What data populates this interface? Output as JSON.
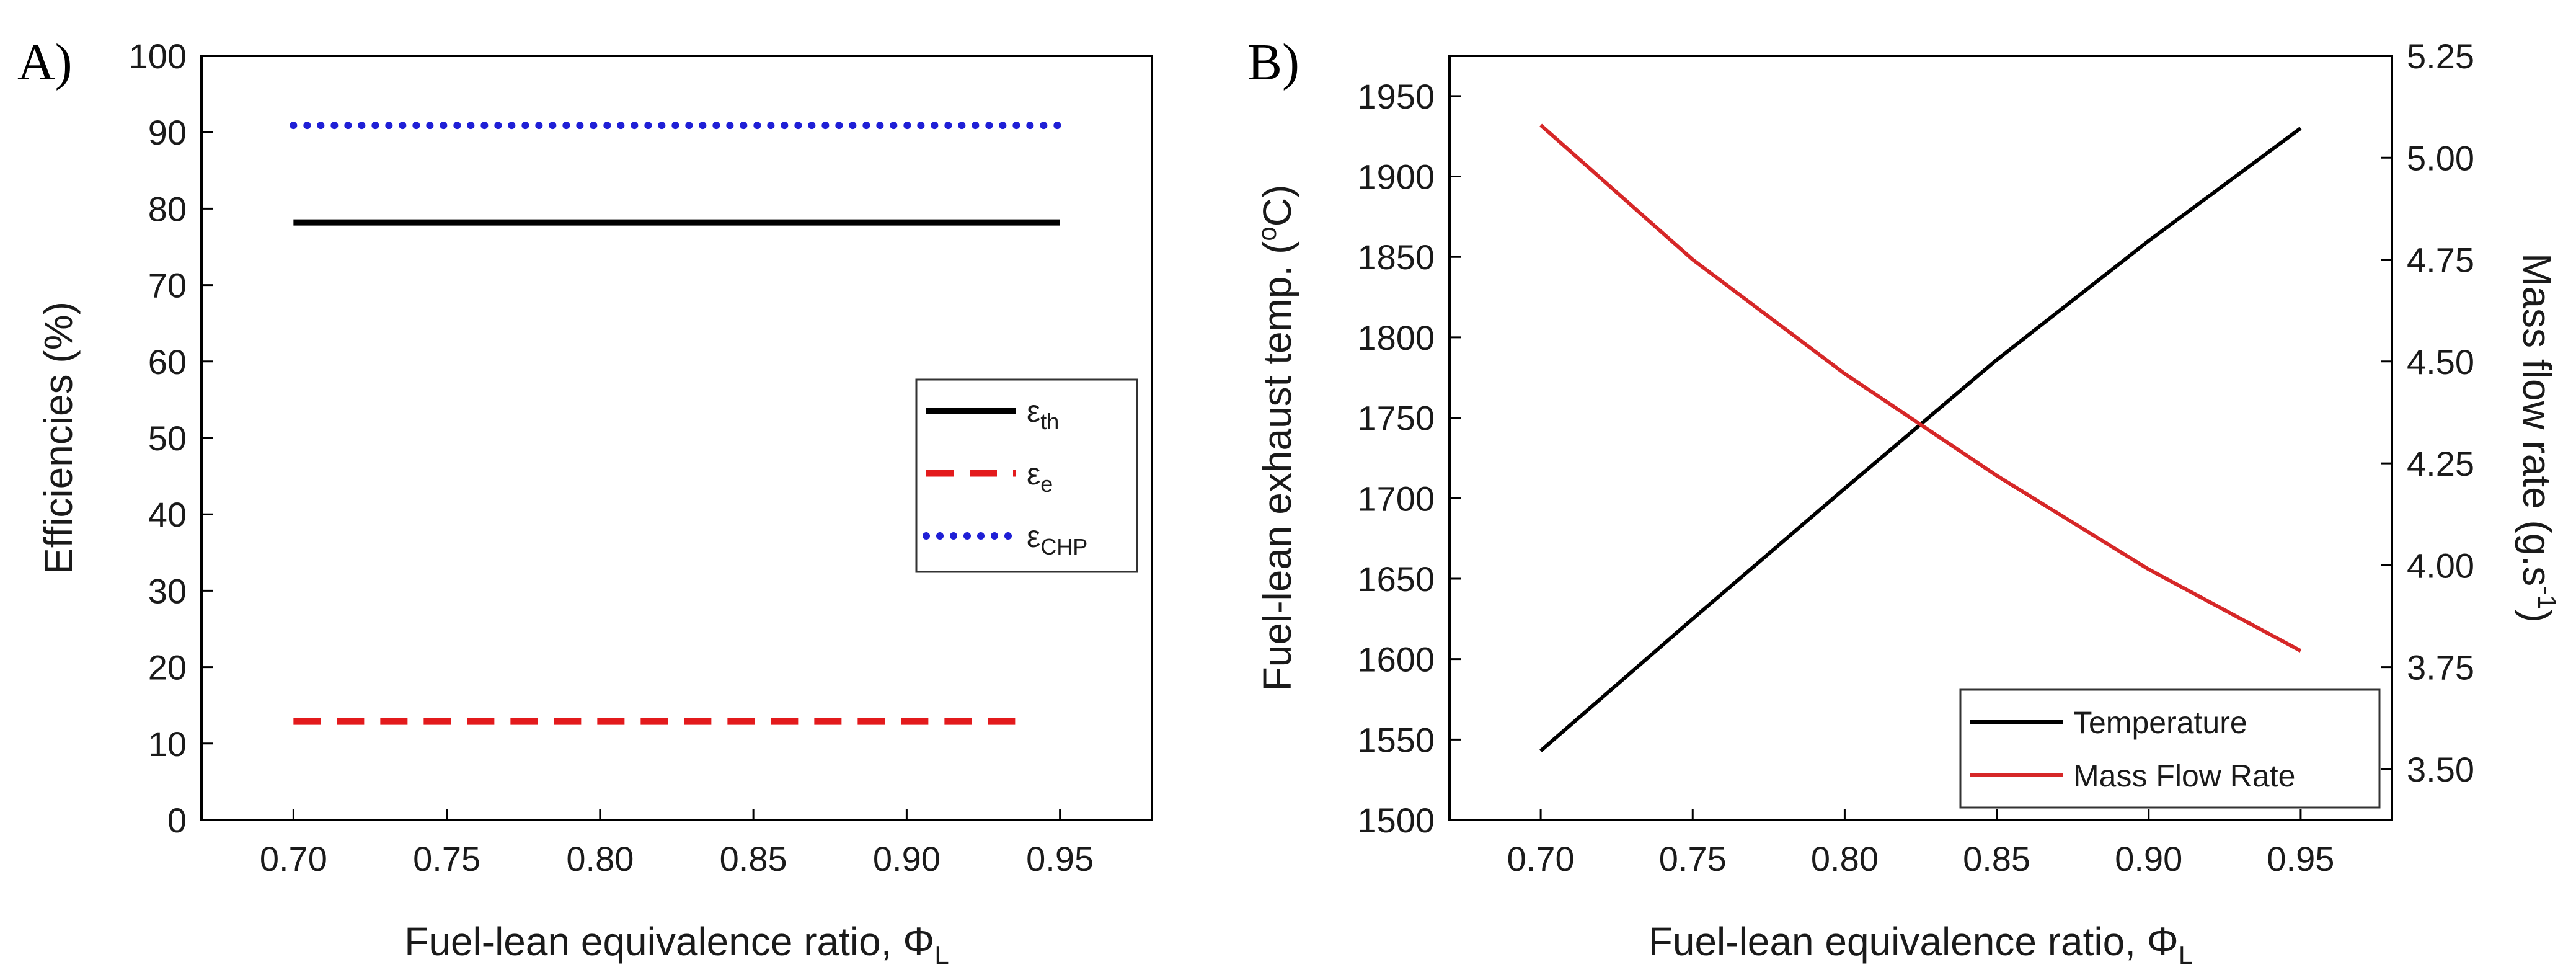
{
  "chart_data": [
    {
      "type": "line",
      "panel_label": "A)",
      "title": "",
      "xlabel": "Fuel-lean equivalence ratio, Φ",
      "xlabel_sub": "L",
      "ylabel": "Efficiencies (%)",
      "xlim": [
        0.67,
        0.98
      ],
      "ylim": [
        0,
        100
      ],
      "xticks": [
        "0.70",
        "0.75",
        "0.80",
        "0.85",
        "0.90",
        "0.95"
      ],
      "yticks": [
        "0",
        "10",
        "20",
        "30",
        "40",
        "50",
        "60",
        "70",
        "80",
        "90",
        "100"
      ],
      "legend_position": "center-right",
      "series": [
        {
          "name": "ε",
          "sub": "th",
          "color": "#000000",
          "style": "solid",
          "x": [
            0.7,
            0.95
          ],
          "values": [
            78.2,
            78.2
          ]
        },
        {
          "name": "ε",
          "sub": "e",
          "color": "#e31a1c",
          "style": "dash",
          "x": [
            0.7,
            0.94
          ],
          "values": [
            12.9,
            12.9
          ]
        },
        {
          "name": "ε",
          "sub": "CHP",
          "color": "#1f1fd6",
          "style": "dot",
          "x": [
            0.7,
            0.95
          ],
          "values": [
            90.9,
            90.9
          ]
        }
      ]
    },
    {
      "type": "line",
      "panel_label": "B)",
      "title": "",
      "xlabel": "Fuel-lean equivalence ratio, Φ",
      "xlabel_sub": "L",
      "ylabel": "Fuel-lean exhaust temp. (",
      "ylabel_sup": "o",
      "ylabel_end": "C)",
      "y2label": "Mass flow rate (g.s",
      "y2label_sup": "-1",
      "y2label_end": ")",
      "xlim": [
        0.67,
        0.98
      ],
      "ylim": [
        1500,
        1975
      ],
      "y2lim": [
        3.375,
        5.25
      ],
      "xticks": [
        "0.70",
        "0.75",
        "0.80",
        "0.85",
        "0.90",
        "0.95"
      ],
      "yticks": [
        "1500",
        "1550",
        "1600",
        "1650",
        "1700",
        "1750",
        "1800",
        "1850",
        "1900",
        "1950"
      ],
      "y2ticks": [
        "3.50",
        "3.75",
        "4.00",
        "4.25",
        "4.50",
        "4.75",
        "5.00",
        "5.25"
      ],
      "legend_position": "bottom-right",
      "series": [
        {
          "name": "Temperature",
          "axis": "left",
          "color": "#000000",
          "x": [
            0.7,
            0.75,
            0.8,
            0.85,
            0.9,
            0.95
          ],
          "values": [
            1543,
            1625,
            1706,
            1786,
            1860,
            1930
          ]
        },
        {
          "name": "Mass Flow Rate",
          "axis": "right",
          "color": "#d62728",
          "x": [
            0.7,
            0.75,
            0.8,
            0.85,
            0.9,
            0.95
          ],
          "values": [
            5.08,
            4.75,
            4.47,
            4.22,
            3.99,
            3.79
          ]
        }
      ]
    }
  ]
}
